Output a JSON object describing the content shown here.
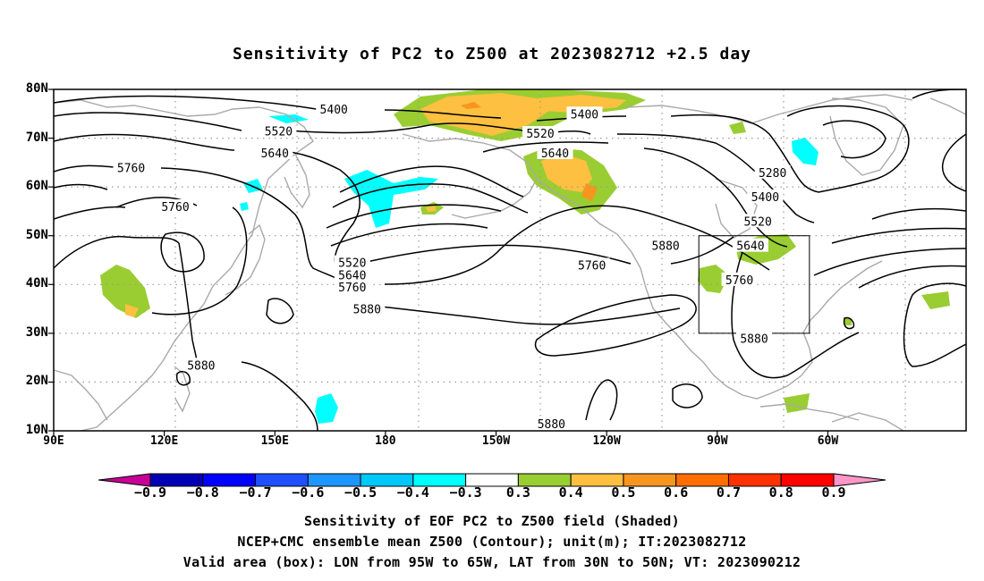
{
  "title": "Sensitivity of PC2 to Z500 at 2023082712 +2.5 day",
  "map": {
    "lat_labels": [
      {
        "text": "80N",
        "lat": 80
      },
      {
        "text": "70N",
        "lat": 70
      },
      {
        "text": "60N",
        "lat": 60
      },
      {
        "text": "50N",
        "lat": 50
      },
      {
        "text": "40N",
        "lat": 40
      },
      {
        "text": "30N",
        "lat": 30
      },
      {
        "text": "20N",
        "lat": 20
      },
      {
        "text": "10N",
        "lat": 10
      }
    ],
    "lon_labels": [
      {
        "text": "90E",
        "lon": 90
      },
      {
        "text": "120E",
        "lon": 120
      },
      {
        "text": "150E",
        "lon": 150
      },
      {
        "text": "180",
        "lon": 180
      },
      {
        "text": "150W",
        "lon": 210
      },
      {
        "text": "120W",
        "lon": 240
      },
      {
        "text": "90W",
        "lon": 270
      },
      {
        "text": "60W",
        "lon": 300
      }
    ],
    "contour_labels": [
      {
        "text": "5400",
        "lon": 166,
        "lat": 76
      },
      {
        "text": "5400",
        "lon": 234,
        "lat": 75
      },
      {
        "text": "5520",
        "lon": 151,
        "lat": 71.5
      },
      {
        "text": "5520",
        "lon": 222,
        "lat": 71
      },
      {
        "text": "5640",
        "lon": 150,
        "lat": 67
      },
      {
        "text": "5640",
        "lon": 226,
        "lat": 67
      },
      {
        "text": "5760",
        "lon": 111,
        "lat": 64
      },
      {
        "text": "5760",
        "lon": 123,
        "lat": 56
      },
      {
        "text": "5280",
        "lon": 285,
        "lat": 63
      },
      {
        "text": "5400",
        "lon": 283,
        "lat": 58
      },
      {
        "text": "5520",
        "lon": 281,
        "lat": 53
      },
      {
        "text": "5880",
        "lon": 256,
        "lat": 48
      },
      {
        "text": "5640",
        "lon": 279,
        "lat": 48
      },
      {
        "text": "5760",
        "lon": 236,
        "lat": 44
      },
      {
        "text": "5520",
        "lon": 171,
        "lat": 44.5
      },
      {
        "text": "5640",
        "lon": 171,
        "lat": 42
      },
      {
        "text": "5760",
        "lon": 171,
        "lat": 39.5
      },
      {
        "text": "5880",
        "lon": 175,
        "lat": 35
      },
      {
        "text": "5760",
        "lon": 276,
        "lat": 41
      },
      {
        "text": "5880",
        "lon": 280,
        "lat": 29
      },
      {
        "text": "5880",
        "lon": 130,
        "lat": 23.5
      },
      {
        "text": "5880",
        "lon": 225,
        "lat": 11.5
      }
    ],
    "valid_box": {
      "lon_min": 265,
      "lon_max": 295,
      "lat_min": 30,
      "lat_max": 50
    },
    "colors": {
      "land_outline": "#a9a9a9",
      "grid": "#999999",
      "contour": "#000000",
      "positive_weak": "#9acd32",
      "positive_mid": "#fdc040",
      "positive_strong": "#f7961e",
      "negative_weak": "#00ffff"
    }
  },
  "colorbar": {
    "labels": [
      "−0.9",
      "−0.8",
      "−0.7",
      "−0.6",
      "−0.5",
      "−0.4",
      "−0.3",
      "0.3",
      "0.4",
      "0.5",
      "0.6",
      "0.7",
      "0.8",
      "0.9"
    ],
    "colors": [
      "#0000b4",
      "#0000ff",
      "#1e50ff",
      "#1e96ff",
      "#00c8ff",
      "#00ffff",
      "#ffffff",
      "#9acd32",
      "#fdc040",
      "#f7961e",
      "#ff6e00",
      "#ff3200",
      "#ff0000"
    ],
    "low_arrow_color": "#c80096",
    "high_arrow_color": "#ff96c8"
  },
  "captions": {
    "line1": "Sensitivity of EOF PC2 to Z500 field (Shaded)",
    "line2": "NCEP+CMC ensemble mean Z500 (Contour); unit(m); IT:2023082712",
    "line3": "Valid area (box): LON from 95W to 65W, LAT from 30N to 50N; VT: 2023090212"
  }
}
